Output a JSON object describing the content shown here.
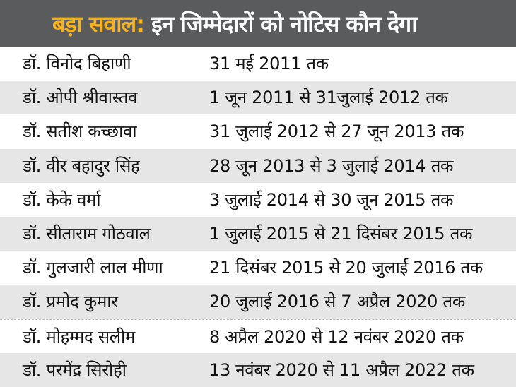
{
  "header": {
    "lead": "बड़ा सवाल:",
    "rest": "इन जिम्मेदारों को नोटिस कौन देगा"
  },
  "colors": {
    "banner_bg": "#5a5b5d",
    "lead_text": "#f6b31d",
    "row_shaded": "#e6e6e7"
  },
  "rows": [
    {
      "name": "डॉ. विनोद बिहाणी",
      "period": "31 मई 2011 तक"
    },
    {
      "name": "डॉ. ओपी श्रीवास्तव",
      "period": "1 जून 2011 से 31जुलाई 2012 तक"
    },
    {
      "name": "डॉ. सतीश कच्छावा",
      "period": "31 जुलाई 2012 से 27 जून 2013 तक"
    },
    {
      "name": "डॉ. वीर बहादुर सिंह",
      "period": "28 जून 2013 से 3 जुलाई 2014 तक"
    },
    {
      "name": "डॉ. केके वर्मा",
      "period": "3 जुलाई 2014 से 30 जून 2015 तक"
    },
    {
      "name": "डॉ. सीताराम गोठवाल",
      "period": "1 जुलाई 2015 से 21 दिसंबर 2015 तक"
    },
    {
      "name": "डॉ. गुलजारी लाल मीणा",
      "period": "21 दिसंबर 2015 से 20 जुलाई 2016 तक"
    },
    {
      "name": "डॉ. प्रमोद कुमार",
      "period": "20 जुलाई 2016 से 7 अप्रैल 2020 तक"
    },
    {
      "name": "डॉ. मोहम्मद सलीम",
      "period": "8 अप्रैल 2020 से 12 नवंबर 2020 तक"
    },
    {
      "name": "डॉ. परमेंद्र सिरोही",
      "period": "13 नवंबर 2020 से 11 अप्रैल 2022 तक"
    }
  ]
}
